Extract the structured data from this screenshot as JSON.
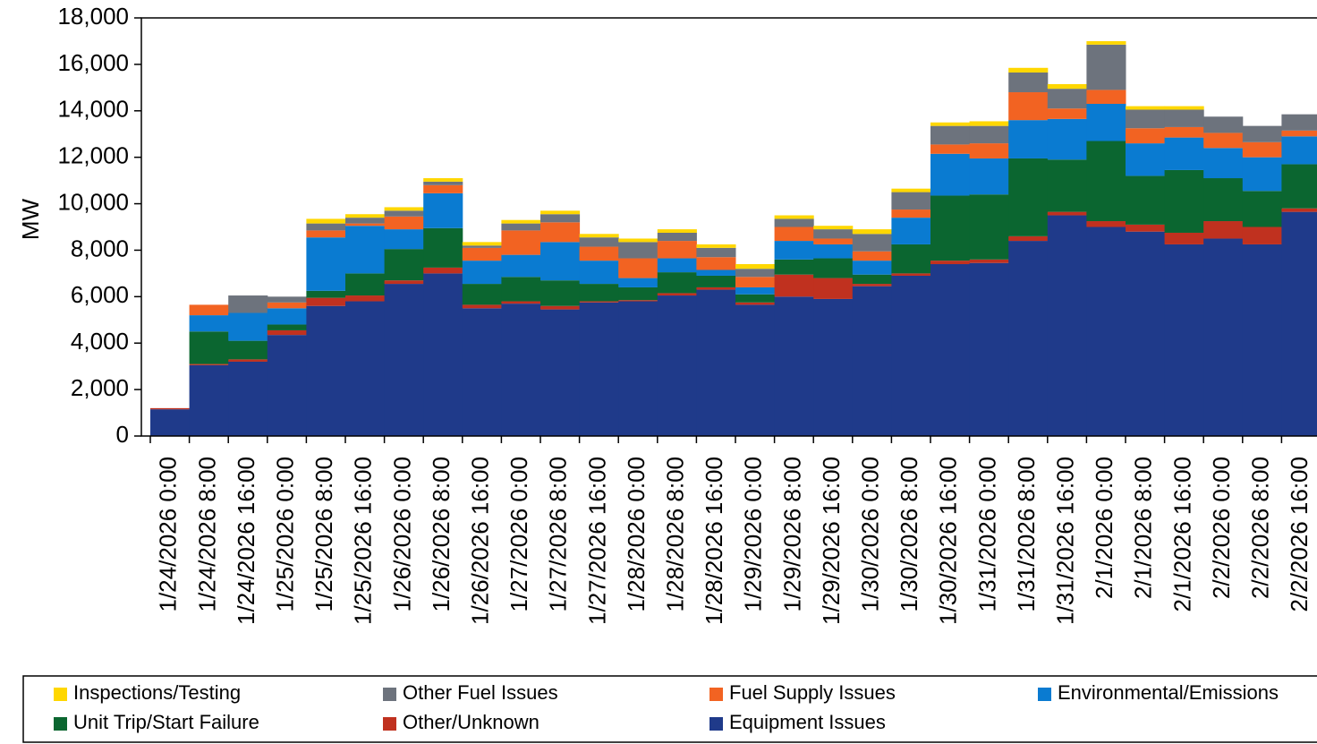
{
  "chart_data": {
    "type": "stacked-step-area",
    "y_label": "MW",
    "categories": [
      "1/24/2026 0:00",
      "1/24/2026 8:00",
      "1/24/2026 16:00",
      "1/25/2026 0:00",
      "1/25/2026 8:00",
      "1/25/2026 16:00",
      "1/26/2026 0:00",
      "1/26/2026 8:00",
      "1/26/2026 16:00",
      "1/27/2026 0:00",
      "1/27/2026 8:00",
      "1/27/2026 16:00",
      "1/28/2026 0:00",
      "1/28/2026 8:00",
      "1/28/2026 16:00",
      "1/29/2026 0:00",
      "1/29/2026 8:00",
      "1/29/2026 16:00",
      "1/30/2026 0:00",
      "1/30/2026 8:00",
      "1/30/2026 16:00",
      "1/31/2026 0:00",
      "1/31/2026 8:00",
      "1/31/2026 16:00",
      "2/1/2026 0:00",
      "2/1/2026 8:00",
      "2/1/2026 16:00",
      "2/2/2026 0:00",
      "2/2/2026 8:00",
      "2/2/2026 16:00"
    ],
    "series": [
      {
        "name": "Inspections/Testing",
        "color": "#ffd700",
        "values": [
          0,
          0,
          0,
          0,
          200,
          150,
          150,
          150,
          150,
          150,
          150,
          150,
          150,
          150,
          150,
          200,
          150,
          150,
          200,
          150,
          150,
          200,
          200,
          200,
          150,
          150,
          150,
          0,
          0,
          0
        ]
      },
      {
        "name": "Other Fuel Issues",
        "color": "#6d737d",
        "values": [
          0,
          0,
          750,
          250,
          300,
          250,
          250,
          150,
          100,
          300,
          350,
          400,
          700,
          350,
          400,
          350,
          350,
          400,
          750,
          750,
          800,
          750,
          850,
          850,
          1950,
          800,
          750,
          700,
          700,
          700
        ]
      },
      {
        "name": "Fuel Supply Issues",
        "color": "#f26322",
        "values": [
          0,
          450,
          0,
          250,
          300,
          100,
          550,
          350,
          550,
          1050,
          850,
          600,
          850,
          750,
          550,
          450,
          600,
          250,
          400,
          350,
          400,
          650,
          1200,
          450,
          600,
          650,
          450,
          650,
          650,
          250
        ]
      },
      {
        "name": "Environmental/Emissions",
        "color": "#0a7bd1",
        "values": [
          0,
          700,
          1200,
          700,
          2300,
          2050,
          850,
          1500,
          1000,
          950,
          1650,
          1000,
          400,
          600,
          250,
          300,
          800,
          600,
          600,
          1150,
          1800,
          1550,
          1650,
          1750,
          1600,
          1400,
          1400,
          1300,
          1450,
          1200
        ]
      },
      {
        "name": "Unit Trip/Start Failure",
        "color": "#0b6630",
        "values": [
          0,
          1400,
          800,
          250,
          300,
          950,
          1350,
          1700,
          900,
          1050,
          1100,
          750,
          550,
          900,
          500,
          350,
          650,
          850,
          400,
          1250,
          2800,
          2800,
          3350,
          2250,
          3450,
          2100,
          2700,
          1850,
          1550,
          1900
        ]
      },
      {
        "name": "Other/Unknown",
        "color": "#c0311f",
        "values": [
          50,
          50,
          100,
          200,
          350,
          250,
          150,
          250,
          150,
          100,
          150,
          50,
          50,
          100,
          100,
          100,
          950,
          900,
          100,
          100,
          150,
          150,
          200,
          150,
          250,
          300,
          500,
          750,
          750,
          150
        ]
      },
      {
        "name": "Equipment Issues",
        "color": "#1f3a8a",
        "values": [
          1150,
          3050,
          3200,
          4350,
          5600,
          5800,
          6550,
          7000,
          5500,
          5700,
          5450,
          5750,
          5800,
          6050,
          6300,
          5650,
          6000,
          5900,
          6450,
          6900,
          7400,
          7450,
          8400,
          9500,
          9000,
          8800,
          8250,
          8500,
          8250,
          9650
        ]
      }
    ],
    "ylim": [
      0,
      18000
    ],
    "yticks": [
      0,
      {
        "value": 2000,
        "label": "2,000"
      },
      {
        "value": 4000,
        "label": "4,000"
      },
      {
        "value": 6000,
        "label": "6,000"
      },
      {
        "value": 8000,
        "label": "8,000"
      },
      {
        "value": 10000,
        "label": "10,000"
      },
      {
        "value": 12000,
        "label": "12,000"
      },
      {
        "value": 14000,
        "label": "14,000"
      },
      {
        "value": 16000,
        "label": "16,000"
      },
      {
        "value": 18000,
        "label": "18,000"
      }
    ],
    "legend": "bottom"
  }
}
